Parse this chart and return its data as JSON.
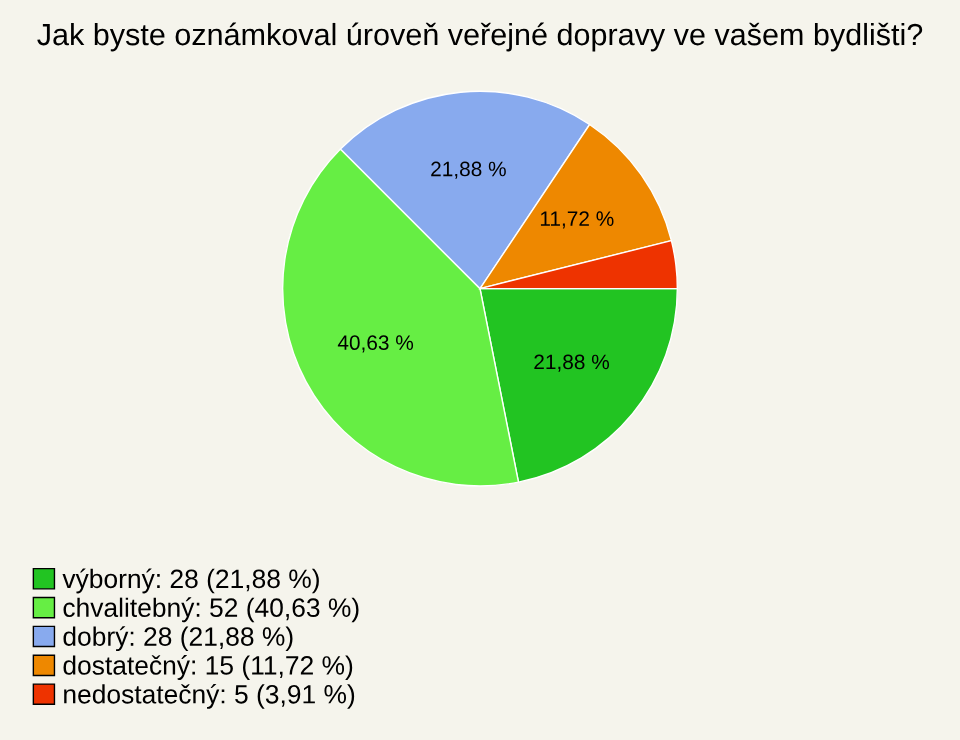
{
  "chart_data": {
    "type": "pie",
    "title": "Jak byste oznámkoval úroveň veřejné dopravy ve vašem bydlišti?",
    "categories": [
      "výborný: 28 (21,88 %)",
      "chvalitebný: 52 (40,63 %)",
      "dobrý: 28 (21,88 %)",
      "dostatečný: 15 (11,72 %)",
      "nedostatečný: 5 (3,91 %)"
    ],
    "values": [
      21.88,
      40.63,
      21.88,
      11.72,
      3.91
    ],
    "value_labels": [
      "21,88 %",
      "40,63 %",
      "21,88 %",
      "11,72 %",
      null
    ],
    "colors": [
      "#22c422",
      "#66ee44",
      "#88aaee",
      "#ee8800",
      "#ee3300"
    ],
    "legend": "bottom left"
  }
}
